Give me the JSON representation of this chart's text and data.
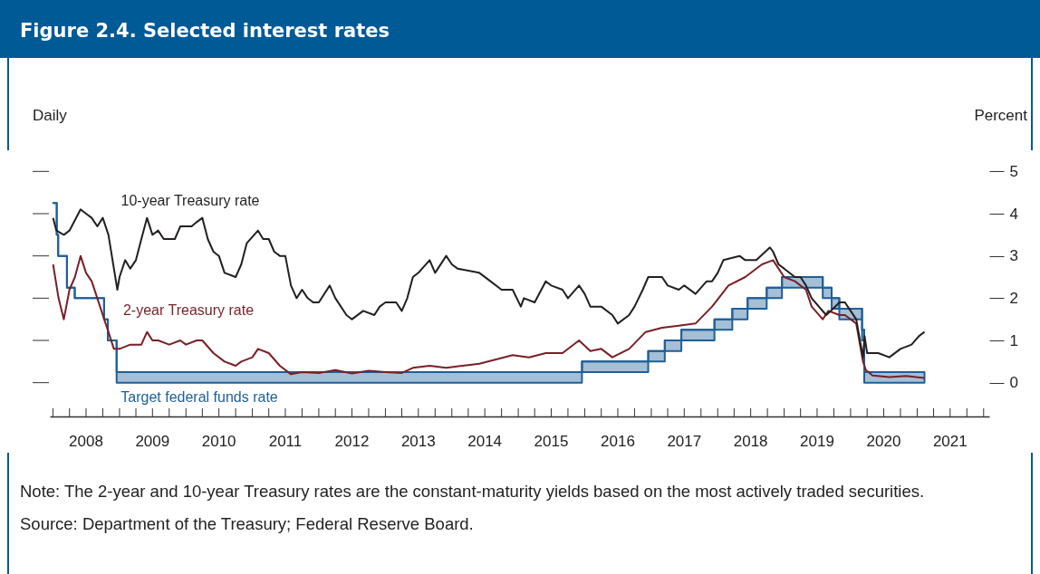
{
  "chart_data": {
    "type": "line",
    "title": "Figure 2.4. Selected interest rates",
    "subtitle": "Daily",
    "ylabel": "Percent",
    "xlim": [
      "2007-12-15",
      "2022-02-01"
    ],
    "xticks": [
      {
        "value": "2008-01-01",
        "label": null
      },
      {
        "value": "2008-04-01",
        "label": null
      },
      {
        "value": "2008-07-01",
        "label": "2008"
      },
      {
        "value": "2008-10-01",
        "label": null
      },
      {
        "value": "2009-01-01",
        "label": null
      },
      {
        "value": "2009-04-01",
        "label": null
      },
      {
        "value": "2009-07-01",
        "label": "2009"
      },
      {
        "value": "2009-10-01",
        "label": null
      },
      {
        "value": "2010-01-01",
        "label": null
      },
      {
        "value": "2010-04-01",
        "label": null
      },
      {
        "value": "2010-07-01",
        "label": "2010"
      },
      {
        "value": "2010-10-01",
        "label": null
      },
      {
        "value": "2011-01-01",
        "label": null
      },
      {
        "value": "2011-04-01",
        "label": null
      },
      {
        "value": "2011-07-01",
        "label": "2011"
      },
      {
        "value": "2011-10-01",
        "label": null
      },
      {
        "value": "2012-01-01",
        "label": null
      },
      {
        "value": "2012-04-01",
        "label": null
      },
      {
        "value": "2012-07-01",
        "label": "2012"
      },
      {
        "value": "2012-10-01",
        "label": null
      },
      {
        "value": "2013-01-01",
        "label": null
      },
      {
        "value": "2013-04-01",
        "label": null
      },
      {
        "value": "2013-07-01",
        "label": "2013"
      },
      {
        "value": "2013-10-01",
        "label": null
      },
      {
        "value": "2014-01-01",
        "label": null
      },
      {
        "value": "2014-04-01",
        "label": null
      },
      {
        "value": "2014-07-01",
        "label": "2014"
      },
      {
        "value": "2014-10-01",
        "label": null
      },
      {
        "value": "2015-01-01",
        "label": null
      },
      {
        "value": "2015-04-01",
        "label": null
      },
      {
        "value": "2015-07-01",
        "label": "2015"
      },
      {
        "value": "2015-10-01",
        "label": null
      },
      {
        "value": "2016-01-01",
        "label": null
      },
      {
        "value": "2016-04-01",
        "label": null
      },
      {
        "value": "2016-07-01",
        "label": "2016"
      },
      {
        "value": "2016-10-01",
        "label": null
      },
      {
        "value": "2017-01-01",
        "label": null
      },
      {
        "value": "2017-04-01",
        "label": null
      },
      {
        "value": "2017-07-01",
        "label": "2017"
      },
      {
        "value": "2017-10-01",
        "label": null
      },
      {
        "value": "2018-01-01",
        "label": null
      },
      {
        "value": "2018-04-01",
        "label": null
      },
      {
        "value": "2018-07-01",
        "label": "2018"
      },
      {
        "value": "2018-10-01",
        "label": null
      },
      {
        "value": "2019-01-01",
        "label": null
      },
      {
        "value": "2019-04-01",
        "label": null
      },
      {
        "value": "2019-07-01",
        "label": "2019"
      },
      {
        "value": "2019-10-01",
        "label": null
      },
      {
        "value": "2020-01-01",
        "label": null
      },
      {
        "value": "2020-04-01",
        "label": null
      },
      {
        "value": "2020-07-01",
        "label": "2020"
      },
      {
        "value": "2020-10-01",
        "label": null
      },
      {
        "value": "2021-01-01",
        "label": null
      },
      {
        "value": "2021-04-01",
        "label": null
      },
      {
        "value": "2021-07-01",
        "label": "2021"
      },
      {
        "value": "2021-10-01",
        "label": null
      },
      {
        "value": "2022-01-01",
        "label": null
      }
    ],
    "ylim": [
      -0.8,
      5.5
    ],
    "yticks": [
      0,
      1,
      2,
      3,
      4,
      5
    ],
    "grid": false,
    "legend": false,
    "marker": "none",
    "line_style": "solid",
    "series": [
      {
        "name": "10-year Treasury rate",
        "type": "line",
        "color": "#231f20",
        "x": [
          "2008-01-02",
          "2008-01-20",
          "2008-03-01",
          "2008-04-01",
          "2008-06-01",
          "2008-07-01",
          "2008-08-01",
          "2008-09-01",
          "2008-10-01",
          "2008-11-01",
          "2008-12-20",
          "2009-01-01",
          "2009-02-01",
          "2009-03-01",
          "2009-04-01",
          "2009-05-01",
          "2009-06-01",
          "2009-07-01",
          "2009-08-01",
          "2009-09-01",
          "2009-10-01",
          "2009-11-01",
          "2009-12-01",
          "2010-01-01",
          "2010-02-01",
          "2010-03-01",
          "2010-04-01",
          "2010-05-01",
          "2010-06-01",
          "2010-07-01",
          "2010-08-01",
          "2010-10-01",
          "2010-11-01",
          "2010-12-01",
          "2011-02-01",
          "2011-03-01",
          "2011-04-01",
          "2011-05-01",
          "2011-06-01",
          "2011-07-01",
          "2011-08-01",
          "2011-09-01",
          "2011-10-01",
          "2011-11-01",
          "2011-12-01",
          "2012-01-01",
          "2012-03-01",
          "2012-04-01",
          "2012-06-01",
          "2012-07-01",
          "2012-09-01",
          "2012-11-01",
          "2012-12-01",
          "2013-01-01",
          "2013-03-01",
          "2013-04-01",
          "2013-05-01",
          "2013-06-01",
          "2013-07-01",
          "2013-09-01",
          "2013-10-01",
          "2013-12-01",
          "2014-01-01",
          "2014-02-01",
          "2014-06-01",
          "2014-08-01",
          "2014-10-01",
          "2014-12-01",
          "2015-01-15",
          "2015-02-01",
          "2015-04-01",
          "2015-06-01",
          "2015-07-01",
          "2015-09-01",
          "2015-10-01",
          "2015-12-01",
          "2016-01-01",
          "2016-02-01",
          "2016-04-01",
          "2016-06-01",
          "2016-07-01",
          "2016-09-01",
          "2016-10-01",
          "2016-11-15",
          "2016-12-15",
          "2017-03-01",
          "2017-04-01",
          "2017-06-01",
          "2017-07-01",
          "2017-09-01",
          "2017-11-01",
          "2017-12-01",
          "2018-01-01",
          "2018-02-01",
          "2018-05-01",
          "2018-06-01",
          "2018-08-01",
          "2018-10-15",
          "2018-11-01",
          "2018-12-01",
          "2019-01-01",
          "2019-03-01",
          "2019-04-01",
          "2019-05-01",
          "2019-06-01",
          "2019-08-20",
          "2019-09-15",
          "2019-11-01",
          "2019-12-01",
          "2020-01-01",
          "2020-02-01",
          "2020-03-09",
          "2020-03-18",
          "2020-04-01",
          "2020-06-01",
          "2020-08-01",
          "2020-10-01",
          "2020-12-01",
          "2021-01-10",
          "2021-02-10"
        ],
        "values": [
          3.9,
          3.6,
          3.5,
          3.6,
          4.1,
          4.0,
          3.9,
          3.7,
          3.9,
          3.5,
          2.2,
          2.5,
          2.9,
          2.7,
          2.9,
          3.4,
          3.9,
          3.5,
          3.6,
          3.4,
          3.4,
          3.4,
          3.7,
          3.7,
          3.7,
          3.8,
          3.9,
          3.4,
          3.1,
          3.0,
          2.6,
          2.5,
          2.8,
          3.3,
          3.6,
          3.4,
          3.4,
          3.1,
          3.0,
          3.0,
          2.3,
          2.0,
          2.2,
          2.0,
          1.9,
          1.9,
          2.3,
          2.0,
          1.6,
          1.5,
          1.7,
          1.6,
          1.8,
          1.9,
          1.9,
          1.7,
          2.0,
          2.5,
          2.6,
          2.9,
          2.6,
          3.0,
          2.8,
          2.7,
          2.6,
          2.4,
          2.2,
          2.2,
          1.8,
          2.0,
          1.9,
          2.4,
          2.3,
          2.2,
          2.0,
          2.3,
          2.1,
          1.8,
          1.8,
          1.6,
          1.4,
          1.6,
          1.8,
          2.2,
          2.5,
          2.5,
          2.3,
          2.2,
          2.3,
          2.1,
          2.4,
          2.4,
          2.6,
          2.9,
          3.0,
          2.9,
          2.9,
          3.2,
          3.1,
          2.8,
          2.7,
          2.5,
          2.5,
          2.3,
          2.0,
          1.6,
          1.7,
          1.9,
          1.9,
          1.7,
          1.5,
          0.6,
          1.1,
          0.7,
          0.7,
          0.6,
          0.8,
          0.9,
          1.1,
          1.2
        ]
      },
      {
        "name": "2-year Treasury rate",
        "type": "line",
        "color": "#7a1f27",
        "x": [
          "2008-01-02",
          "2008-02-01",
          "2008-03-01",
          "2008-04-01",
          "2008-05-01",
          "2008-06-01",
          "2008-07-01",
          "2008-08-01",
          "2008-09-01",
          "2008-10-01",
          "2008-11-01",
          "2008-12-01",
          "2009-01-01",
          "2009-03-01",
          "2009-05-01",
          "2009-06-01",
          "2009-07-01",
          "2009-08-01",
          "2009-10-01",
          "2009-12-01",
          "2010-01-01",
          "2010-03-01",
          "2010-04-01",
          "2010-06-01",
          "2010-08-01",
          "2010-10-01",
          "2010-11-01",
          "2011-01-01",
          "2011-02-01",
          "2011-04-01",
          "2011-06-01",
          "2011-08-01",
          "2011-10-01",
          "2012-01-01",
          "2012-04-01",
          "2012-07-01",
          "2012-10-01",
          "2013-01-01",
          "2013-04-01",
          "2013-06-01",
          "2013-09-01",
          "2013-12-01",
          "2014-03-01",
          "2014-06-01",
          "2014-09-01",
          "2014-12-01",
          "2015-03-01",
          "2015-06-01",
          "2015-09-01",
          "2015-12-01",
          "2016-02-01",
          "2016-04-01",
          "2016-06-01",
          "2016-09-01",
          "2016-12-01",
          "2017-03-01",
          "2017-06-01",
          "2017-09-01",
          "2017-12-01",
          "2018-03-01",
          "2018-06-01",
          "2018-09-01",
          "2018-11-01",
          "2018-12-01",
          "2019-01-01",
          "2019-03-01",
          "2019-05-01",
          "2019-06-01",
          "2019-08-01",
          "2019-09-01",
          "2019-11-01",
          "2019-12-01",
          "2020-02-01",
          "2020-03-09",
          "2020-03-25",
          "2020-05-01",
          "2020-08-01",
          "2020-11-01",
          "2021-02-10"
        ],
        "values": [
          2.8,
          2.0,
          1.5,
          2.2,
          2.5,
          3.0,
          2.6,
          2.4,
          2.0,
          1.6,
          1.2,
          0.8,
          0.8,
          0.9,
          0.9,
          1.2,
          1.0,
          1.0,
          0.9,
          1.0,
          0.9,
          1.0,
          1.0,
          0.7,
          0.5,
          0.4,
          0.5,
          0.6,
          0.8,
          0.7,
          0.4,
          0.2,
          0.25,
          0.23,
          0.3,
          0.22,
          0.28,
          0.25,
          0.23,
          0.35,
          0.4,
          0.35,
          0.4,
          0.45,
          0.55,
          0.65,
          0.6,
          0.7,
          0.7,
          1.0,
          0.75,
          0.8,
          0.6,
          0.8,
          1.2,
          1.3,
          1.35,
          1.4,
          1.8,
          2.3,
          2.5,
          2.8,
          2.9,
          2.7,
          2.5,
          2.4,
          2.2,
          1.8,
          1.5,
          1.7,
          1.6,
          1.6,
          1.4,
          0.5,
          0.3,
          0.17,
          0.13,
          0.16,
          0.11
        ]
      },
      {
        "name": "Target federal funds rate",
        "type": "step",
        "color": "#1f5f99",
        "x": [
          "2008-01-02",
          "2008-01-22",
          "2008-01-30",
          "2008-03-18",
          "2008-04-30",
          "2008-10-08",
          "2008-10-29",
          "2008-12-16",
          "2015-12-17",
          "2016-12-15",
          "2017-03-16",
          "2017-06-15",
          "2017-12-14",
          "2018-03-22",
          "2018-06-14",
          "2018-09-27",
          "2018-12-20",
          "2019-08-01",
          "2019-09-19",
          "2019-10-31",
          "2020-03-04",
          "2020-03-16",
          "2021-02-10"
        ],
        "values": [
          4.25,
          3.5,
          3.0,
          2.25,
          2.0,
          1.5,
          1.0,
          0.25,
          0.5,
          0.75,
          1.0,
          1.25,
          1.5,
          1.75,
          2.0,
          2.25,
          2.5,
          2.25,
          2.0,
          1.75,
          1.25,
          0.25,
          0.25
        ],
        "lower": [
          4.25,
          3.5,
          3.0,
          2.25,
          2.0,
          1.5,
          1.0,
          0,
          0.25,
          0.5,
          0.75,
          1.0,
          1.25,
          1.5,
          1.75,
          2.0,
          2.25,
          2.0,
          1.75,
          1.5,
          1.0,
          0,
          0
        ],
        "upper": [
          4.25,
          3.5,
          3.0,
          2.25,
          2.0,
          1.5,
          1.0,
          0.25,
          0.5,
          0.75,
          1.0,
          1.25,
          1.5,
          1.75,
          2.0,
          2.25,
          2.5,
          2.25,
          2.0,
          1.75,
          1.25,
          0.25,
          0.25
        ]
      }
    ],
    "annotations": [
      "Note: The 2-year and 10-year Treasury rates are the constant-maturity yields based on the most actively traded securities.",
      "Source: Department of the Treasury; Federal Reserve Board."
    ]
  }
}
